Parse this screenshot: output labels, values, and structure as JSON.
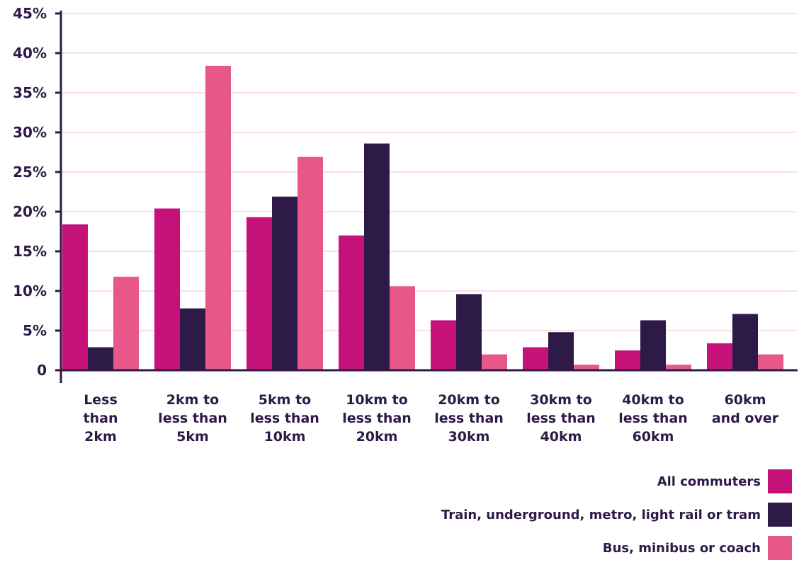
{
  "chart_data": {
    "type": "bar",
    "categories": [
      [
        "Less",
        "than",
        "2km"
      ],
      [
        "2km to",
        "less than",
        "5km"
      ],
      [
        "5km to",
        "less than",
        "10km"
      ],
      [
        "10km to",
        "less than",
        "20km"
      ],
      [
        "20km to",
        "less than",
        "30km"
      ],
      [
        "30km to",
        "less than",
        "40km"
      ],
      [
        "40km to",
        "less than",
        "60km"
      ],
      [
        "60km",
        "and over"
      ]
    ],
    "series": [
      {
        "name": "All commuters",
        "color": "#c4127a",
        "values": [
          18.4,
          20.4,
          19.3,
          17.0,
          6.3,
          2.9,
          2.5,
          3.4
        ]
      },
      {
        "name": "Train, underground, metro, light rail or tram",
        "color": "#2e1a47",
        "values": [
          2.9,
          7.8,
          21.9,
          28.6,
          9.6,
          4.8,
          6.3,
          7.1
        ]
      },
      {
        "name": "Bus, minibus or coach",
        "color": "#e8578a",
        "values": [
          11.8,
          38.4,
          26.9,
          10.6,
          2.0,
          0.7,
          0.7,
          2.0
        ]
      }
    ],
    "y_ticks": [
      "0",
      "5%",
      "10%",
      "15%",
      "20%",
      "25%",
      "30%",
      "35%",
      "40%",
      "45%"
    ],
    "ylim": [
      0,
      45
    ],
    "grid": true,
    "grid_color": "#fbe0ea",
    "axis_color": "#2e1a47",
    "legend_position": "bottom-right"
  }
}
